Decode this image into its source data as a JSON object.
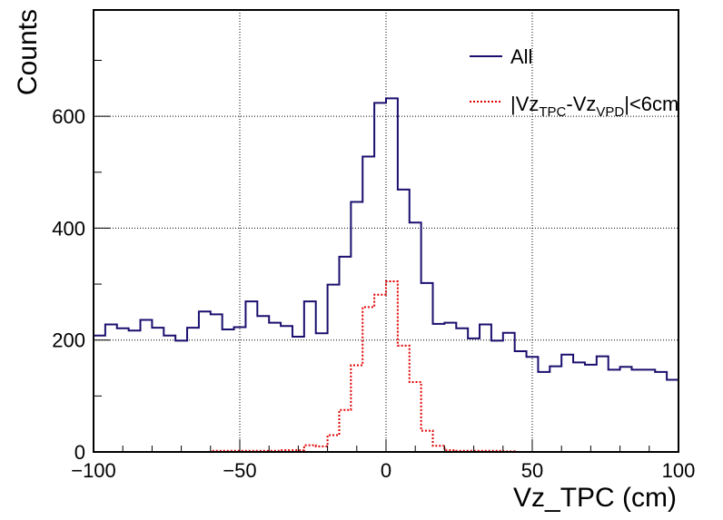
{
  "chart_data": {
    "type": "line",
    "style": "step-histogram",
    "title": "",
    "xlabel": "Vz_TPC (cm)",
    "ylabel": "Counts",
    "xlim": [
      -100,
      100
    ],
    "ylim": [
      0,
      790
    ],
    "grid": true,
    "legend_position": "top-right",
    "x_ticks": [
      -100,
      -50,
      0,
      50,
      100
    ],
    "x_tick_labels": [
      "−100",
      "−50",
      "0",
      "50",
      "100"
    ],
    "y_ticks": [
      0,
      200,
      400,
      600
    ],
    "y_tick_labels": [
      "0",
      "200",
      "400",
      "600"
    ],
    "bin_edges_start": -100,
    "bin_width": 4,
    "legend": {
      "all_label": "All",
      "cut_label_prefix": "|Vz",
      "cut_sub1": "TPC",
      "cut_mid": "-Vz",
      "cut_sub2": "VPD",
      "cut_suffix": "|<6cm"
    },
    "series": [
      {
        "name": "All",
        "color": "#1a0f6e",
        "line_style": "solid",
        "values": [
          208,
          228,
          221,
          217,
          236,
          222,
          208,
          199,
          222,
          251,
          246,
          219,
          223,
          269,
          243,
          231,
          225,
          206,
          269,
          212,
          299,
          349,
          447,
          528,
          624,
          632,
          469,
          410,
          302,
          229,
          231,
          221,
          203,
          228,
          199,
          213,
          180,
          170,
          143,
          153,
          174,
          160,
          156,
          171,
          147,
          152,
          147,
          147,
          143,
          129
        ]
      },
      {
        "name": "|Vz_TPC-Vz_VPD|<6cm",
        "color": "#e00000",
        "line_style": "dotted",
        "values": [
          0,
          0,
          0,
          0,
          0,
          0,
          0,
          0,
          0,
          0,
          2,
          2,
          2,
          2,
          2,
          2,
          3,
          3,
          12,
          10,
          30,
          75,
          155,
          259,
          281,
          305,
          190,
          125,
          38,
          11,
          3,
          2,
          2,
          2,
          2,
          1,
          0,
          0,
          0,
          0,
          0,
          0,
          0,
          0,
          0,
          0,
          0,
          0,
          0,
          0
        ]
      }
    ]
  }
}
